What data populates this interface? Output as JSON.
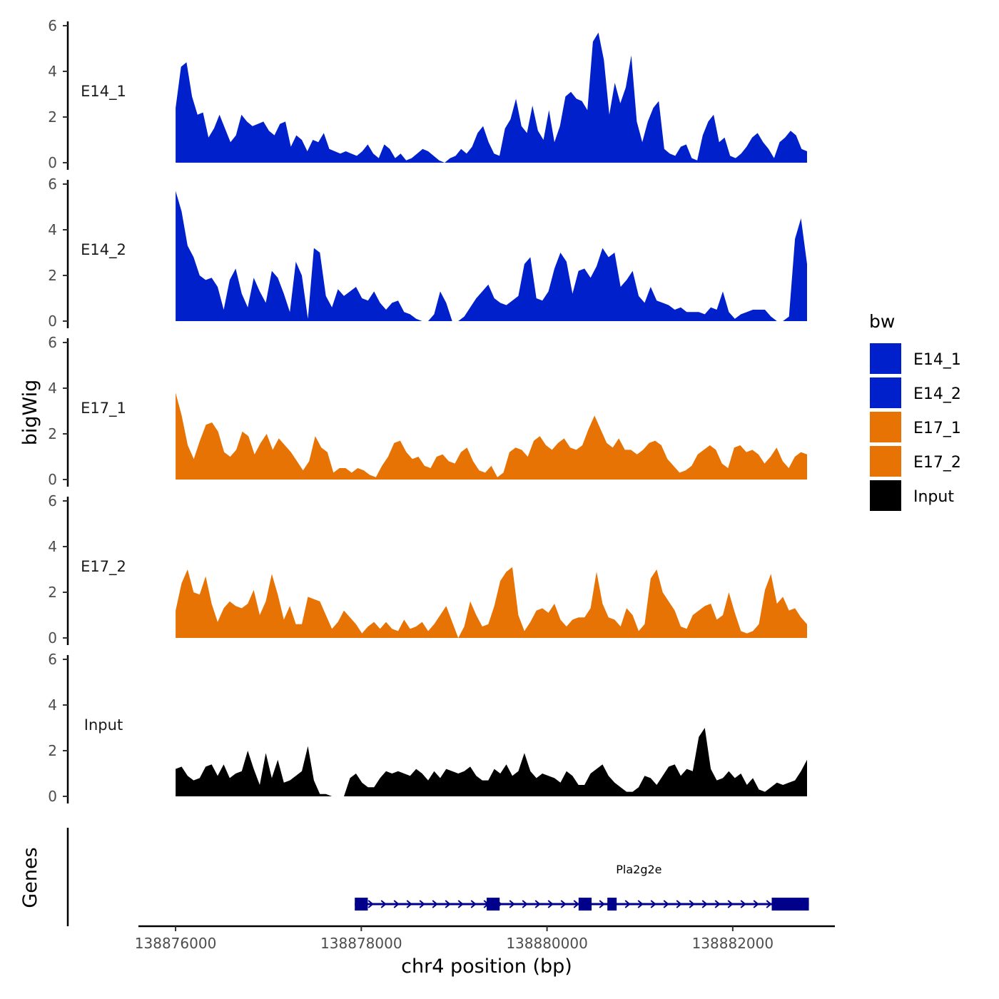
{
  "chart_data": {
    "type": "area",
    "ylabel": "bigWig",
    "xlabel": "chr4 position (bp)",
    "genes_label": "Genes",
    "ylim": [
      0,
      6
    ],
    "y_ticks": [
      0,
      2,
      4,
      6
    ],
    "xlim": [
      138875600,
      138883100
    ],
    "x_ticks": [
      138876000,
      138878000,
      138880000,
      138882000
    ],
    "x_tick_labels": [
      "138876000",
      "138878000",
      "138880000",
      "138882000"
    ],
    "data_range": [
      138876000,
      138882800
    ],
    "legend": {
      "title": "bw",
      "entries": [
        {
          "label": "E14_1",
          "color": "#0020CC"
        },
        {
          "label": "E14_2",
          "color": "#0020CC"
        },
        {
          "label": "E17_1",
          "color": "#E87305"
        },
        {
          "label": "E17_2",
          "color": "#E87305"
        },
        {
          "label": "Input",
          "color": "#000000"
        }
      ]
    },
    "tracks": [
      {
        "name": "E14_1",
        "color": "#0020CC",
        "values": [
          2.4,
          4.2,
          4.4,
          2.9,
          2.1,
          2.2,
          1.1,
          1.5,
          2.1,
          1.5,
          0.9,
          1.2,
          2.1,
          1.8,
          1.6,
          1.7,
          1.8,
          1.4,
          1.2,
          1.7,
          1.8,
          0.7,
          1.2,
          1.0,
          0.5,
          1.0,
          0.9,
          1.3,
          0.6,
          0.5,
          0.4,
          0.5,
          0.4,
          0.3,
          0.5,
          0.8,
          0.4,
          0.2,
          0.8,
          0.6,
          0.2,
          0.4,
          0.1,
          0.2,
          0.4,
          0.6,
          0.5,
          0.3,
          0.1,
          0.0,
          0.2,
          0.3,
          0.6,
          0.4,
          0.7,
          1.3,
          1.6,
          0.9,
          0.4,
          0.3,
          1.5,
          1.9,
          2.8,
          1.6,
          1.3,
          2.5,
          1.4,
          1.0,
          2.3,
          0.9,
          1.6,
          2.9,
          3.1,
          2.8,
          2.7,
          2.3,
          5.3,
          5.7,
          4.5,
          2.1,
          3.5,
          2.6,
          3.3,
          4.7,
          1.8,
          0.9,
          1.8,
          2.4,
          2.7,
          0.6,
          0.4,
          0.3,
          0.7,
          0.8,
          0.2,
          0.1,
          1.2,
          1.8,
          2.1,
          0.9,
          1.1,
          0.3,
          0.2,
          0.4,
          0.7,
          1.1,
          1.3,
          0.9,
          0.6,
          0.2,
          0.9,
          1.1,
          1.4,
          1.2,
          0.6,
          0.5
        ]
      },
      {
        "name": "E14_2",
        "color": "#0020CC",
        "values": [
          5.7,
          4.8,
          3.3,
          2.8,
          2.0,
          1.8,
          1.9,
          1.5,
          0.5,
          1.8,
          2.3,
          1.2,
          0.6,
          1.9,
          1.3,
          0.8,
          2.2,
          1.9,
          1.2,
          0.4,
          2.6,
          2.0,
          0.1,
          3.2,
          3.0,
          1.1,
          0.6,
          1.4,
          1.1,
          1.3,
          1.5,
          1.0,
          0.9,
          1.3,
          0.8,
          0.5,
          0.8,
          0.9,
          0.4,
          0.3,
          0.1,
          0.0,
          0.0,
          0.3,
          1.3,
          0.8,
          0.0,
          0.0,
          0.2,
          0.6,
          1.0,
          1.3,
          1.6,
          1.0,
          0.8,
          0.7,
          0.9,
          1.1,
          2.5,
          2.8,
          1.0,
          0.9,
          1.3,
          2.3,
          3.0,
          2.6,
          1.2,
          2.2,
          2.3,
          1.9,
          2.4,
          3.2,
          2.8,
          3.0,
          1.5,
          1.8,
          2.2,
          1.1,
          0.8,
          1.5,
          0.9,
          0.8,
          0.7,
          0.5,
          0.6,
          0.4,
          0.4,
          0.4,
          0.3,
          0.6,
          0.5,
          1.3,
          0.4,
          0.1,
          0.3,
          0.4,
          0.5,
          0.5,
          0.5,
          0.2,
          0.0,
          0.0,
          0.2,
          3.6,
          4.5,
          2.5
        ]
      },
      {
        "name": "E17_1",
        "color": "#E87305",
        "values": [
          3.8,
          2.8,
          1.5,
          0.9,
          1.7,
          2.4,
          2.5,
          2.1,
          1.2,
          1.0,
          1.3,
          2.1,
          1.9,
          1.1,
          1.6,
          2.0,
          1.3,
          1.8,
          1.5,
          1.2,
          0.8,
          0.4,
          0.8,
          1.9,
          1.4,
          1.2,
          0.3,
          0.5,
          0.5,
          0.3,
          0.5,
          0.4,
          0.2,
          0.1,
          0.6,
          1.0,
          1.6,
          1.7,
          1.2,
          0.9,
          1.0,
          0.6,
          0.5,
          1.0,
          1.1,
          0.8,
          0.7,
          1.2,
          1.4,
          0.8,
          0.4,
          0.3,
          0.6,
          0.1,
          0.3,
          1.2,
          1.4,
          1.3,
          1.0,
          1.7,
          1.9,
          1.5,
          1.3,
          1.6,
          1.8,
          1.4,
          1.3,
          1.5,
          2.2,
          2.8,
          2.2,
          1.6,
          1.4,
          1.8,
          1.3,
          1.3,
          1.1,
          1.3,
          1.6,
          1.7,
          1.5,
          0.9,
          0.6,
          0.3,
          0.4,
          0.6,
          1.1,
          1.3,
          1.5,
          1.3,
          0.7,
          0.5,
          1.4,
          1.5,
          1.2,
          1.3,
          1.1,
          0.7,
          1.0,
          1.4,
          0.8,
          0.5,
          1.0,
          1.2,
          1.1
        ]
      },
      {
        "name": "E17_2",
        "color": "#E87305",
        "values": [
          1.2,
          2.4,
          3.0,
          2.0,
          1.9,
          2.7,
          1.5,
          0.7,
          1.3,
          1.6,
          1.4,
          1.3,
          1.5,
          2.1,
          1.0,
          1.6,
          2.8,
          1.9,
          0.8,
          1.4,
          0.6,
          0.6,
          1.8,
          1.7,
          1.6,
          1.0,
          0.4,
          0.7,
          1.2,
          0.9,
          0.6,
          0.2,
          0.5,
          0.7,
          0.4,
          0.7,
          0.4,
          0.3,
          0.8,
          0.4,
          0.5,
          0.7,
          0.3,
          0.6,
          1.0,
          1.4,
          0.7,
          0.0,
          0.5,
          1.6,
          1.0,
          0.5,
          0.6,
          1.4,
          2.5,
          2.9,
          3.1,
          1.0,
          0.3,
          0.7,
          1.2,
          1.3,
          1.1,
          1.5,
          0.8,
          0.5,
          0.8,
          0.9,
          0.9,
          1.3,
          2.9,
          1.5,
          0.9,
          0.8,
          0.5,
          1.3,
          1.0,
          0.3,
          0.6,
          2.6,
          3.0,
          2.0,
          1.6,
          1.2,
          0.5,
          0.4,
          1.0,
          1.2,
          1.4,
          1.5,
          0.8,
          1.0,
          2.0,
          1.1,
          0.3,
          0.2,
          0.3,
          0.6,
          2.1,
          2.8,
          1.5,
          1.8,
          1.2,
          1.3,
          0.9,
          0.6
        ]
      },
      {
        "name": "Input",
        "color": "#000000",
        "values": [
          1.2,
          1.3,
          0.9,
          0.7,
          0.8,
          1.3,
          1.4,
          0.9,
          1.4,
          0.8,
          1.0,
          1.1,
          2.0,
          1.2,
          0.5,
          1.9,
          0.8,
          1.6,
          0.6,
          0.7,
          0.9,
          1.1,
          2.2,
          0.7,
          0.1,
          0.1,
          0.0,
          0.0,
          0.0,
          0.8,
          1.0,
          0.6,
          0.4,
          0.4,
          0.8,
          1.1,
          1.0,
          1.1,
          1.0,
          0.9,
          1.2,
          1.0,
          0.7,
          1.1,
          0.8,
          1.2,
          1.1,
          1.0,
          1.1,
          1.3,
          0.9,
          0.7,
          0.7,
          1.2,
          1.0,
          1.4,
          0.9,
          1.1,
          1.9,
          1.1,
          0.8,
          1.0,
          0.9,
          0.8,
          0.6,
          1.1,
          0.9,
          0.5,
          0.5,
          1.0,
          1.2,
          1.4,
          0.9,
          0.6,
          0.4,
          0.2,
          0.2,
          0.4,
          0.9,
          0.8,
          0.5,
          0.9,
          1.3,
          1.4,
          0.9,
          1.2,
          1.1,
          2.6,
          3.0,
          1.2,
          0.7,
          0.8,
          1.1,
          0.8,
          1.0,
          0.5,
          0.8,
          0.3,
          0.2,
          0.4,
          0.6,
          0.5,
          0.6,
          0.7,
          1.1,
          1.6
        ]
      }
    ],
    "gene": {
      "name": "Pla2g2e",
      "strand": "+",
      "start": 138877930,
      "end": 138882820,
      "exons": [
        [
          138877930,
          138878070
        ],
        [
          138879350,
          138879490
        ],
        [
          138880340,
          138880480
        ],
        [
          138880650,
          138880750
        ],
        [
          138882420,
          138882820
        ]
      ]
    }
  }
}
